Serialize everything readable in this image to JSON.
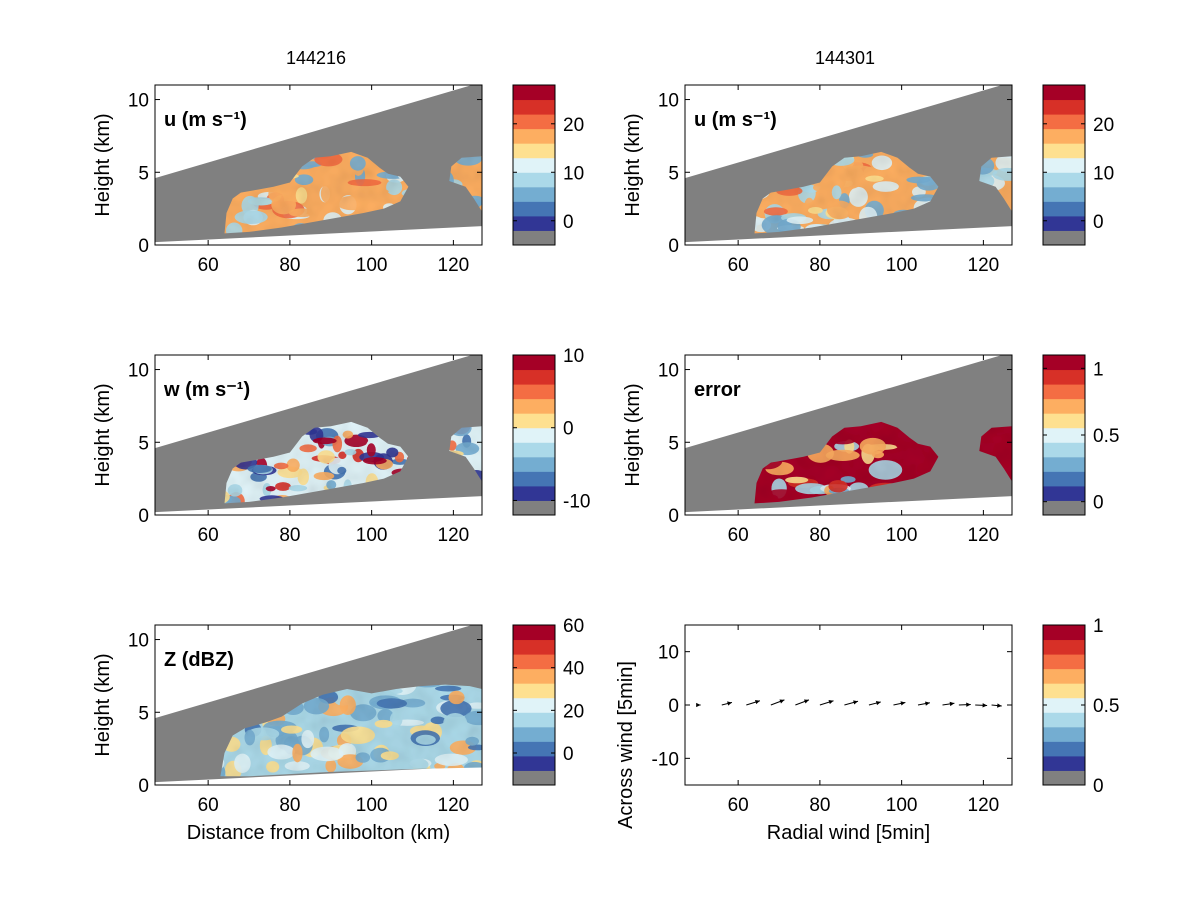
{
  "colors": {
    "palette": [
      "#313695",
      "#4575b4",
      "#74add1",
      "#abd9e9",
      "#e0f3f8",
      "#fee090",
      "#fdae61",
      "#f46d43",
      "#d73027",
      "#a50026"
    ],
    "background_gray": "#808080",
    "arrow": "#000000"
  },
  "chart_data": [
    {
      "type": "heatmap",
      "column_title": "144216",
      "label": "u (m s⁻¹)",
      "ylabel": "Height (km)",
      "xlabel": "",
      "xlim": [
        47,
        127
      ],
      "ylim": [
        0,
        11
      ],
      "x_ticks": [
        "60",
        "80",
        "100",
        "120"
      ],
      "y_ticks": [
        "0",
        "5",
        "10"
      ],
      "colorbar": {
        "lim": [
          -5,
          28
        ],
        "ticks": [
          "0",
          "10",
          "20"
        ]
      }
    },
    {
      "type": "heatmap",
      "column_title": "144301",
      "label": "u (m s⁻¹)",
      "ylabel": "Height (km)",
      "xlabel": "",
      "xlim": [
        47,
        127
      ],
      "ylim": [
        0,
        11
      ],
      "x_ticks": [
        "60",
        "80",
        "100",
        "120"
      ],
      "y_ticks": [
        "0",
        "5",
        "10"
      ],
      "colorbar": {
        "lim": [
          -5,
          28
        ],
        "ticks": [
          "0",
          "10",
          "20"
        ]
      }
    },
    {
      "type": "heatmap",
      "label": "w (m s⁻¹)",
      "ylabel": "Height (km)",
      "xlabel": "",
      "xlim": [
        47,
        127
      ],
      "ylim": [
        0,
        11
      ],
      "x_ticks": [
        "60",
        "80",
        "100",
        "120"
      ],
      "y_ticks": [
        "0",
        "5",
        "10"
      ],
      "colorbar": {
        "lim": [
          -12,
          10
        ],
        "ticks": [
          "-10",
          "0",
          "10"
        ]
      }
    },
    {
      "type": "heatmap",
      "label": "error",
      "ylabel": "Height (km)",
      "xlabel": "",
      "xlim": [
        47,
        127
      ],
      "ylim": [
        0,
        11
      ],
      "x_ticks": [
        "60",
        "80",
        "100",
        "120"
      ],
      "y_ticks": [
        "0",
        "5",
        "10"
      ],
      "colorbar": {
        "lim": [
          -0.1,
          1.1
        ],
        "ticks": [
          "0",
          "0.5",
          "1"
        ]
      }
    },
    {
      "type": "heatmap",
      "label": "Z (dBZ)",
      "ylabel": "Height (km)",
      "xlabel": "Distance from Chilbolton (km)",
      "xlim": [
        47,
        127
      ],
      "ylim": [
        0,
        11
      ],
      "x_ticks": [
        "60",
        "80",
        "100",
        "120"
      ],
      "y_ticks": [
        "0",
        "5",
        "10"
      ],
      "colorbar": {
        "lim": [
          -15,
          60
        ],
        "ticks": [
          "0",
          "20",
          "40",
          "60"
        ]
      }
    },
    {
      "type": "scatter",
      "label": "",
      "ylabel": "Across wind [5min]",
      "xlabel": "Radial wind [5min]",
      "xlim": [
        47,
        127
      ],
      "ylim": [
        -15,
        15
      ],
      "x_ticks": [
        "60",
        "80",
        "100",
        "120"
      ],
      "y_ticks": [
        "-10",
        "0",
        "10"
      ],
      "colorbar": {
        "lim": [
          0,
          1
        ],
        "ticks": [
          "0",
          "0.5",
          "1"
        ]
      },
      "arrows": [
        {
          "x": 50,
          "u": 1,
          "v": 0
        },
        {
          "x": 56,
          "u": 3,
          "v": 1.5
        },
        {
          "x": 62,
          "u": 4,
          "v": 2.5
        },
        {
          "x": 68,
          "u": 4,
          "v": 3
        },
        {
          "x": 74,
          "u": 4,
          "v": 3
        },
        {
          "x": 80,
          "u": 4,
          "v": 2.5
        },
        {
          "x": 86,
          "u": 4,
          "v": 2.2
        },
        {
          "x": 92,
          "u": 3.5,
          "v": 1.8
        },
        {
          "x": 98,
          "u": 3.5,
          "v": 1.5
        },
        {
          "x": 104,
          "u": 3.5,
          "v": 1.3
        },
        {
          "x": 110,
          "u": 3.5,
          "v": 1
        },
        {
          "x": 114,
          "u": 3.5,
          "v": 0.3
        },
        {
          "x": 118,
          "u": 3.5,
          "v": -0.3
        },
        {
          "x": 122,
          "u": 3,
          "v": -0.6
        }
      ]
    }
  ]
}
